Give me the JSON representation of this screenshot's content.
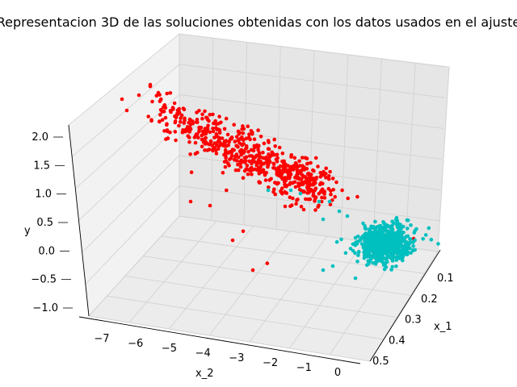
{
  "chart_data": {
    "type": "scatter",
    "title": "Representacion 3D de las soluciones obtenidas con los datos usados en el ajuste",
    "xlabel": "x_1",
    "ylabel": "x_2",
    "zlabel": "y",
    "xlim": [
      0.05,
      0.55
    ],
    "ylim": [
      -7.5,
      0.2
    ],
    "zlim": [
      -1.1,
      2.2
    ],
    "x_ticks": [
      "0.1",
      "0.2",
      "0.3",
      "0.4",
      "0.5"
    ],
    "y_ticks": [
      "−7",
      "−6",
      "−5",
      "−4",
      "−3",
      "−2",
      "−1",
      "0"
    ],
    "z_ticks": [
      "−1.0",
      "−0.5",
      "0.0",
      "0.5",
      "1.0",
      "1.5",
      "2.0"
    ],
    "grid": true,
    "colors": {
      "red": "#ff0000",
      "cyan": "#00bfbf"
    },
    "series": [
      {
        "color": "red",
        "approx_count": 600,
        "points_x2_y": [
          [
            -7.3,
            2.0
          ],
          [
            -7.0,
            1.9
          ],
          [
            -6.8,
            1.7
          ],
          [
            -6.5,
            1.6
          ],
          [
            -6.2,
            1.8
          ],
          [
            -6.0,
            1.5
          ],
          [
            -5.8,
            1.4
          ],
          [
            -5.5,
            1.6
          ],
          [
            -5.2,
            1.3
          ],
          [
            -5.0,
            1.4
          ],
          [
            -4.7,
            1.2
          ],
          [
            -4.5,
            1.3
          ],
          [
            -4.2,
            1.1
          ],
          [
            -4.0,
            1.2
          ],
          [
            -3.7,
            1.0
          ],
          [
            -3.5,
            1.1
          ],
          [
            -3.2,
            0.9
          ],
          [
            -3.0,
            1.0
          ],
          [
            -2.7,
            0.8
          ],
          [
            -2.5,
            0.9
          ],
          [
            -2.2,
            0.7
          ],
          [
            -2.0,
            0.6
          ],
          [
            -1.8,
            0.5
          ],
          [
            -1.5,
            0.6
          ],
          [
            -6.0,
            0.6
          ],
          [
            -5.0,
            0.4
          ],
          [
            -4.5,
            -0.3
          ],
          [
            -3.8,
            -0.8
          ]
        ]
      },
      {
        "color": "cyan",
        "approx_count": 700,
        "points_x2_y": [
          [
            -0.5,
            -0.2
          ],
          [
            -0.3,
            -0.1
          ],
          [
            -0.2,
            0.0
          ],
          [
            -0.4,
            -0.3
          ],
          [
            -0.6,
            0.1
          ],
          [
            -0.8,
            0.2
          ],
          [
            -1.0,
            0.3
          ],
          [
            -1.2,
            0.4
          ],
          [
            -1.5,
            0.5
          ],
          [
            -1.8,
            0.5
          ]
        ]
      }
    ]
  }
}
